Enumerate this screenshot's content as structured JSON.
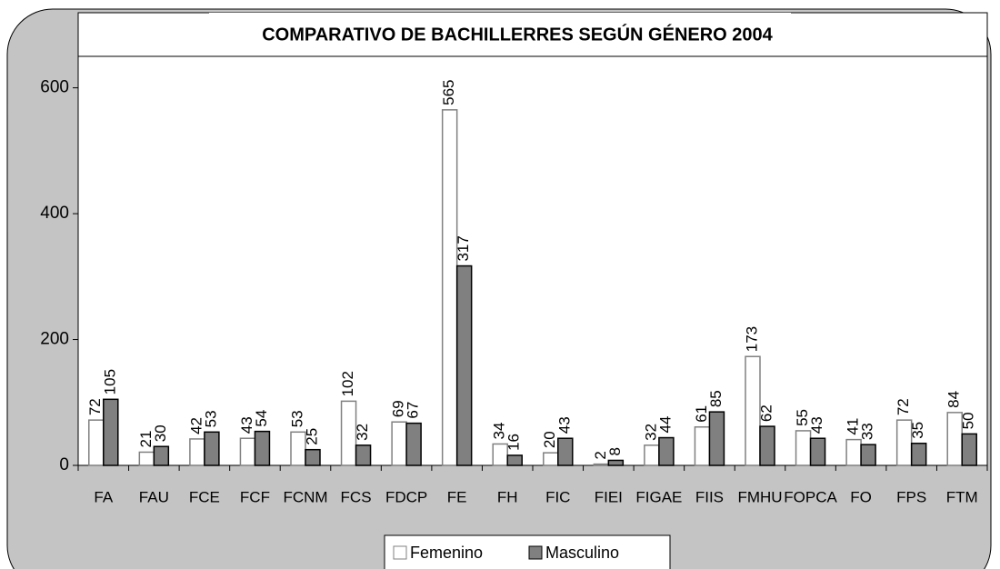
{
  "chart_data": {
    "type": "bar",
    "title": "COMPARATIVO DE BACHILLERRES SEGÚN GÉNERO 2004",
    "categories": [
      "FA",
      "FAU",
      "FCE",
      "FCF",
      "FCNM",
      "FCS",
      "FDCP",
      "FE",
      "FH",
      "FIC",
      "FIEI",
      "FIGAE",
      "FIIS",
      "FMHU",
      "FOPCA",
      "FO",
      "FPS",
      "FTM"
    ],
    "series": [
      {
        "name": "Femenino",
        "color": "#ffffff",
        "values": [
          72,
          21,
          42,
          43,
          53,
          102,
          69,
          565,
          34,
          20,
          2,
          32,
          61,
          173,
          55,
          41,
          72,
          84
        ]
      },
      {
        "name": "Masculino",
        "color": "#808080",
        "values": [
          105,
          30,
          53,
          54,
          25,
          32,
          67,
          317,
          16,
          43,
          8,
          44,
          85,
          62,
          43,
          33,
          35,
          50
        ]
      }
    ],
    "ylim": [
      0,
      650
    ],
    "yticks": [
      0,
      200,
      400,
      600
    ],
    "legend": "bottom"
  }
}
